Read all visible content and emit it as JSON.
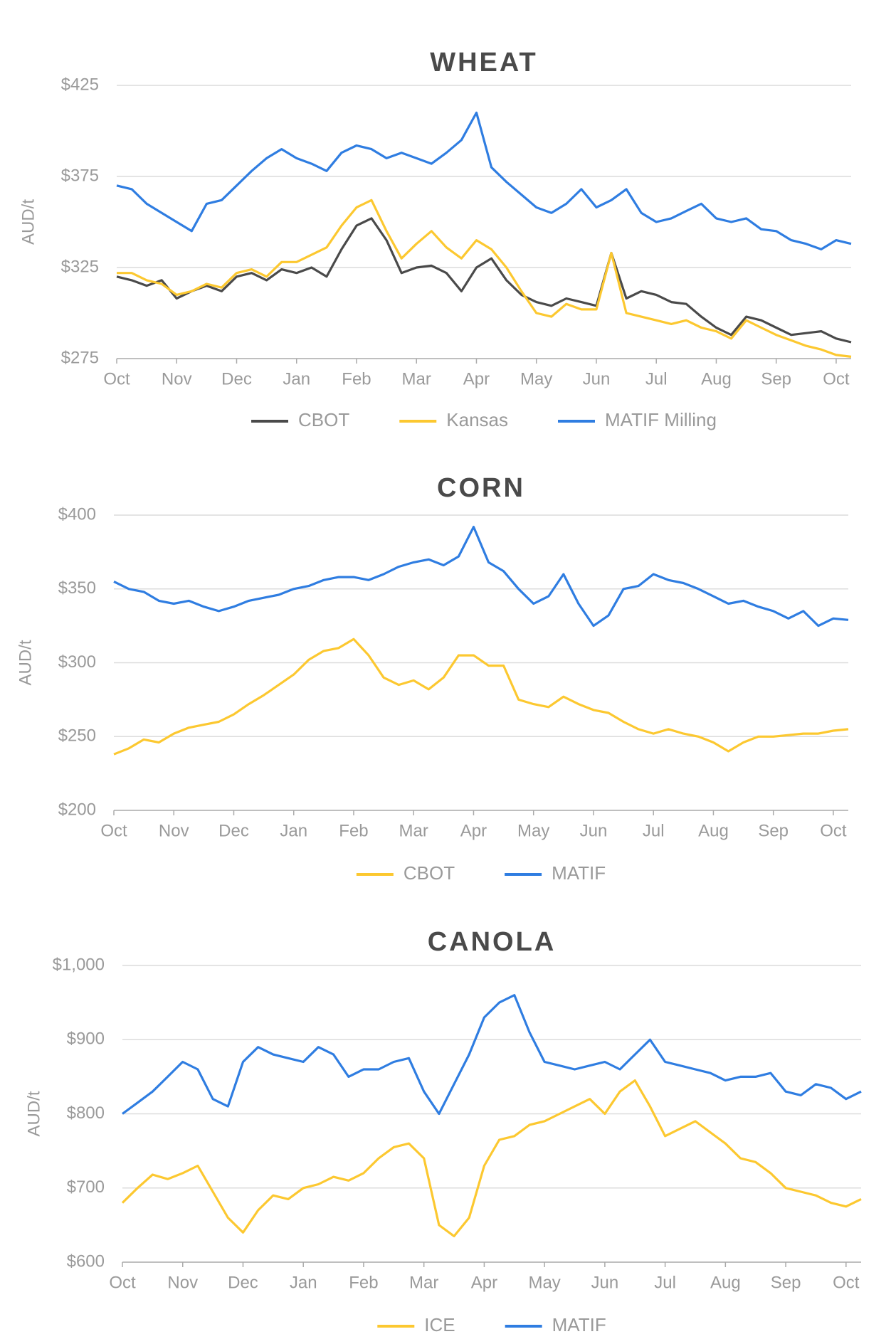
{
  "chart_data": [
    {
      "type": "line",
      "title": "WHEAT",
      "y_label": "AUD/t",
      "legend": "bottom",
      "grid": true,
      "categories": [
        "Oct",
        null,
        null,
        null,
        "Nov",
        null,
        null,
        null,
        "Dec",
        null,
        null,
        null,
        "Jan",
        null,
        null,
        null,
        "Feb",
        null,
        null,
        null,
        "Mar",
        null,
        null,
        null,
        "Apr",
        null,
        null,
        null,
        "May",
        null,
        null,
        null,
        "Jun",
        null,
        null,
        null,
        "Jul",
        null,
        null,
        null,
        "Aug",
        null,
        null,
        null,
        "Sep",
        null,
        null,
        null,
        "Oct",
        null
      ],
      "ylim": [
        275,
        425
      ],
      "yticks": [
        {
          "value": 275,
          "label": "$275"
        },
        {
          "value": 325,
          "label": "$325"
        },
        {
          "value": 375,
          "label": "$375"
        },
        {
          "value": 425,
          "label": "$425"
        }
      ],
      "series": [
        {
          "name": "CBOT",
          "color": "#4a4a4a",
          "values": [
            320,
            318,
            315,
            318,
            308,
            312,
            315,
            312,
            320,
            322,
            318,
            324,
            322,
            325,
            320,
            335,
            348,
            352,
            340,
            322,
            325,
            326,
            322,
            312,
            325,
            330,
            318,
            310,
            306,
            304,
            308,
            306,
            304,
            333,
            308,
            312,
            310,
            306,
            305,
            298,
            292,
            288,
            298,
            296,
            292,
            288,
            289,
            290,
            286,
            284
          ]
        },
        {
          "name": "Kansas",
          "color": "#fcc830",
          "values": [
            322,
            322,
            318,
            316,
            310,
            312,
            316,
            314,
            322,
            324,
            320,
            328,
            328,
            332,
            336,
            348,
            358,
            362,
            345,
            330,
            338,
            345,
            336,
            330,
            340,
            335,
            325,
            312,
            300,
            298,
            305,
            302,
            302,
            333,
            300,
            298,
            296,
            294,
            296,
            292,
            290,
            286,
            296,
            292,
            288,
            285,
            282,
            280,
            277,
            276
          ]
        },
        {
          "name": "MATIF Milling",
          "color": "#2f7de1",
          "values": [
            370,
            368,
            360,
            355,
            350,
            345,
            360,
            362,
            370,
            378,
            385,
            390,
            385,
            382,
            378,
            388,
            392,
            390,
            385,
            388,
            385,
            382,
            388,
            395,
            410,
            380,
            372,
            365,
            358,
            355,
            360,
            368,
            358,
            362,
            368,
            355,
            350,
            352,
            356,
            360,
            352,
            350,
            352,
            346,
            345,
            340,
            338,
            335,
            340,
            338
          ]
        }
      ]
    },
    {
      "type": "line",
      "title": "CORN",
      "y_label": "AUD/t",
      "legend": "bottom",
      "grid": true,
      "categories": [
        "Oct",
        null,
        null,
        null,
        "Nov",
        null,
        null,
        null,
        "Dec",
        null,
        null,
        null,
        "Jan",
        null,
        null,
        null,
        "Feb",
        null,
        null,
        null,
        "Mar",
        null,
        null,
        null,
        "Apr",
        null,
        null,
        null,
        "May",
        null,
        null,
        null,
        "Jun",
        null,
        null,
        null,
        "Jul",
        null,
        null,
        null,
        "Aug",
        null,
        null,
        null,
        "Sep",
        null,
        null,
        null,
        "Oct",
        null
      ],
      "ylim": [
        200,
        400
      ],
      "yticks": [
        {
          "value": 200,
          "label": "$200"
        },
        {
          "value": 250,
          "label": "$250"
        },
        {
          "value": 300,
          "label": "$300"
        },
        {
          "value": 350,
          "label": "$350"
        },
        {
          "value": 400,
          "label": "$400"
        }
      ],
      "series": [
        {
          "name": "CBOT",
          "color": "#fcc830",
          "values": [
            238,
            242,
            248,
            246,
            252,
            256,
            258,
            260,
            265,
            272,
            278,
            285,
            292,
            302,
            308,
            310,
            316,
            305,
            290,
            285,
            288,
            282,
            290,
            305,
            305,
            298,
            298,
            275,
            272,
            270,
            277,
            272,
            268,
            266,
            260,
            255,
            252,
            255,
            252,
            250,
            246,
            240,
            246,
            250,
            250,
            251,
            252,
            252,
            254,
            255
          ]
        },
        {
          "name": "MATIF",
          "color": "#2f7de1",
          "values": [
            355,
            350,
            348,
            342,
            340,
            342,
            338,
            335,
            338,
            342,
            344,
            346,
            350,
            352,
            356,
            358,
            358,
            356,
            360,
            365,
            368,
            370,
            366,
            372,
            392,
            368,
            362,
            350,
            340,
            345,
            360,
            340,
            325,
            332,
            350,
            352,
            360,
            356,
            354,
            350,
            345,
            340,
            342,
            338,
            335,
            330,
            335,
            325,
            330,
            329
          ]
        }
      ]
    },
    {
      "type": "line",
      "title": "CANOLA",
      "y_label": "AUD/t",
      "legend": "bottom",
      "grid": true,
      "categories": [
        "Oct",
        null,
        null,
        null,
        "Nov",
        null,
        null,
        null,
        "Dec",
        null,
        null,
        null,
        "Jan",
        null,
        null,
        null,
        "Feb",
        null,
        null,
        null,
        "Mar",
        null,
        null,
        null,
        "Apr",
        null,
        null,
        null,
        "May",
        null,
        null,
        null,
        "Jun",
        null,
        null,
        null,
        "Jul",
        null,
        null,
        null,
        "Aug",
        null,
        null,
        null,
        "Sep",
        null,
        null,
        null,
        "Oct",
        null
      ],
      "ylim": [
        600,
        1000
      ],
      "yticks": [
        {
          "value": 600,
          "label": "$600"
        },
        {
          "value": 700,
          "label": "$700"
        },
        {
          "value": 800,
          "label": "$800"
        },
        {
          "value": 900,
          "label": "$900"
        },
        {
          "value": 1000,
          "label": "$1,000"
        }
      ],
      "series": [
        {
          "name": "ICE",
          "color": "#fcc830",
          "values": [
            680,
            700,
            718,
            712,
            720,
            730,
            695,
            660,
            640,
            670,
            690,
            685,
            700,
            705,
            715,
            710,
            720,
            740,
            755,
            760,
            740,
            650,
            635,
            660,
            730,
            765,
            770,
            785,
            790,
            800,
            810,
            820,
            800,
            830,
            845,
            810,
            770,
            780,
            790,
            775,
            760,
            740,
            735,
            720,
            700,
            695,
            690,
            680,
            675,
            685
          ]
        },
        {
          "name": "MATIF",
          "color": "#2f7de1",
          "values": [
            800,
            815,
            830,
            850,
            870,
            860,
            820,
            810,
            870,
            890,
            880,
            875,
            870,
            890,
            880,
            850,
            860,
            860,
            870,
            875,
            830,
            800,
            840,
            880,
            930,
            950,
            960,
            910,
            870,
            865,
            860,
            865,
            870,
            860,
            880,
            900,
            870,
            865,
            860,
            855,
            845,
            850,
            850,
            855,
            830,
            825,
            840,
            835,
            820,
            830
          ]
        }
      ]
    }
  ]
}
